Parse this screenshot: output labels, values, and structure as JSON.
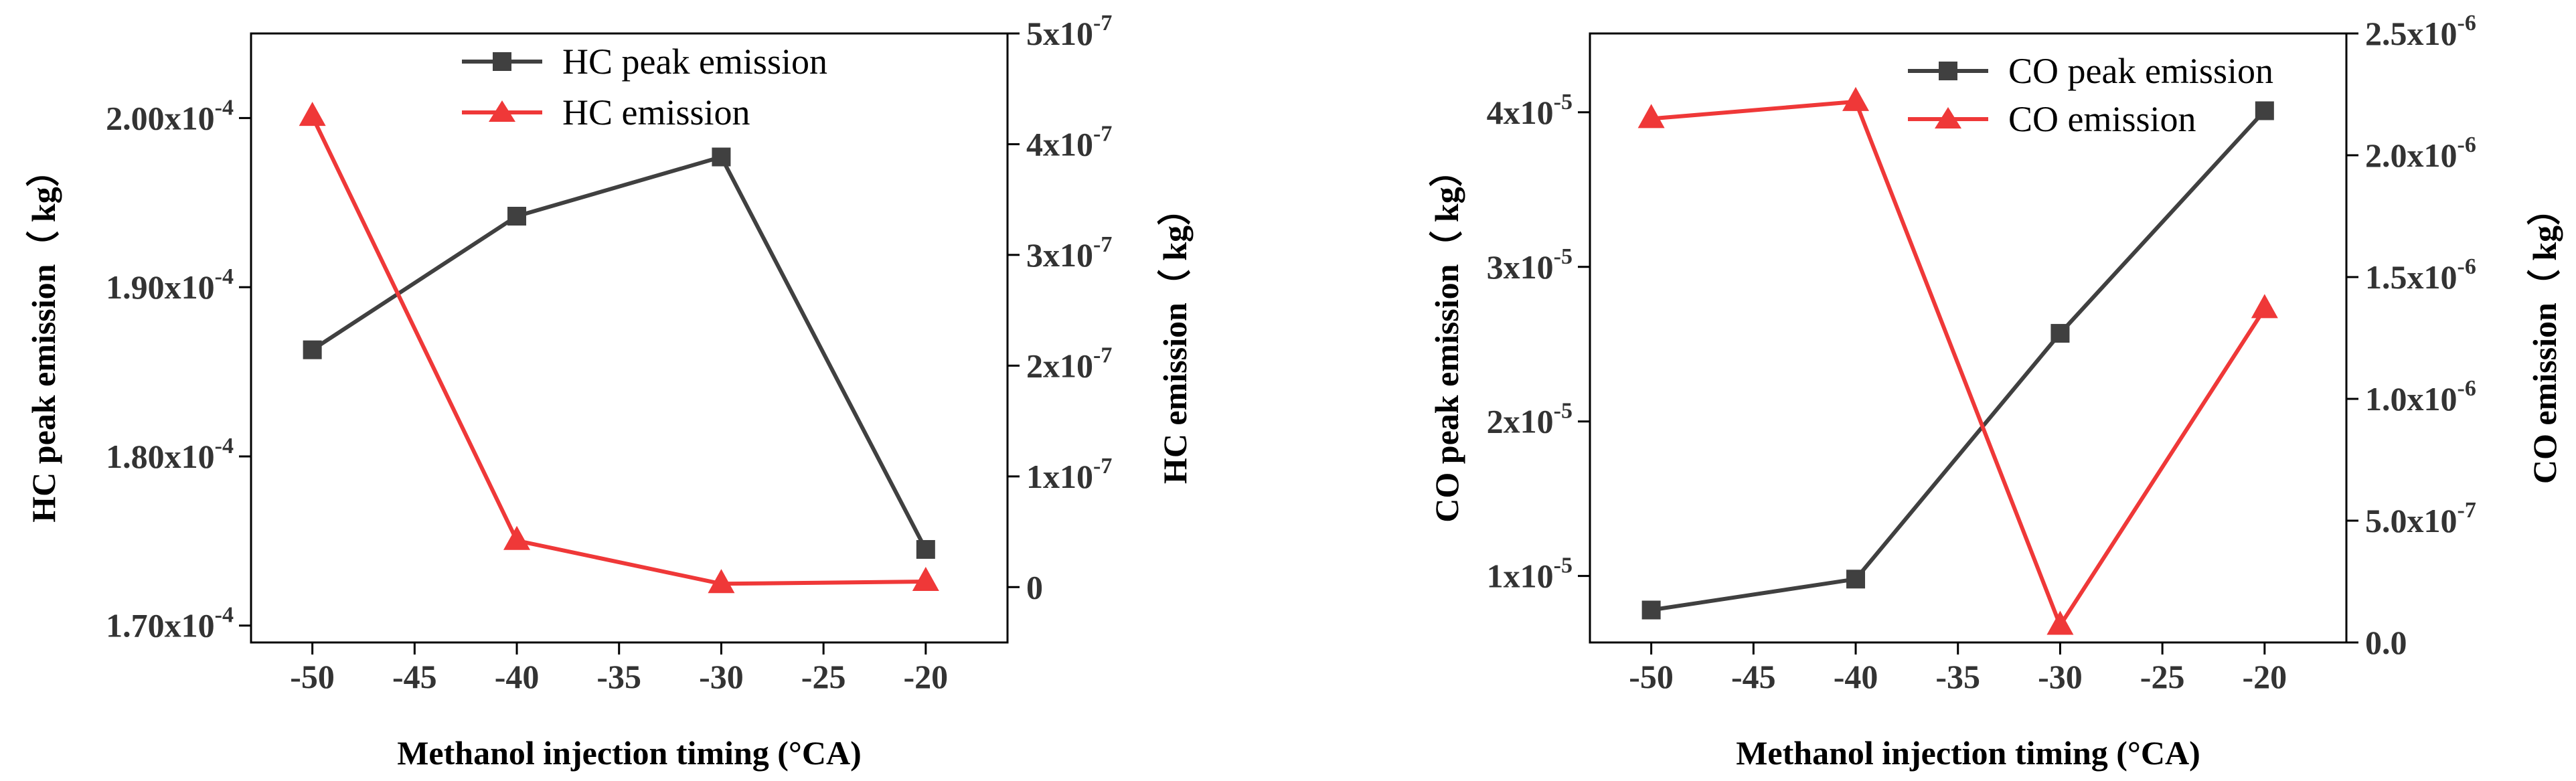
{
  "charts": [
    {
      "id": "hc",
      "xlabel": "Methanol injection timing (°CA)",
      "ylabel_left": "HC peak emission（ kg）",
      "ylabel_right": "HC emission（ kg）"
    },
    {
      "id": "co",
      "xlabel": "Methanol injection timing (°CA)",
      "ylabel_left": "CO peak emission（ kg）",
      "ylabel_right": "CO emission（ kg）"
    }
  ],
  "chart_data": [
    {
      "type": "line",
      "x": [
        -50,
        -40,
        -30,
        -20
      ],
      "xlim": [
        -53,
        -16
      ],
      "xticks": [
        -50,
        -45,
        -40,
        -35,
        -30,
        -25,
        -20
      ],
      "xlabel": "Methanol injection timing (°CA)",
      "ylabel_left": "HC peak emission（ kg）",
      "ylabel_right": "HC emission（ kg）",
      "ylim_left": [
        0.000169,
        0.000205
      ],
      "yticks_left": [
        {
          "value": 0.00017,
          "mantissa": "1.70x10",
          "exp": "-4"
        },
        {
          "value": 0.00018,
          "mantissa": "1.80x10",
          "exp": "-4"
        },
        {
          "value": 0.00019,
          "mantissa": "1.90x10",
          "exp": "-4"
        },
        {
          "value": 0.0002,
          "mantissa": "2.00x10",
          "exp": "-4"
        }
      ],
      "ylim_right": [
        -5e-08,
        5e-07
      ],
      "yticks_right": [
        {
          "value": 0,
          "mantissa": "0",
          "exp": ""
        },
        {
          "value": 1e-07,
          "mantissa": "1x10",
          "exp": "-7"
        },
        {
          "value": 2e-07,
          "mantissa": "2x10",
          "exp": "-7"
        },
        {
          "value": 3e-07,
          "mantissa": "3x10",
          "exp": "-7"
        },
        {
          "value": 4e-07,
          "mantissa": "4x10",
          "exp": "-7"
        },
        {
          "value": 5e-07,
          "mantissa": "5x10",
          "exp": "-7"
        }
      ],
      "legend_position": "top-center",
      "series": [
        {
          "name": "HC peak emission",
          "axis": "left",
          "marker": "square",
          "color": "#404040",
          "values": [
            0.0001863,
            0.0001942,
            0.0001977,
            0.0001745
          ]
        },
        {
          "name": "HC emission",
          "axis": "right",
          "marker": "triangle",
          "color": "#ef3838",
          "values": [
            4.25e-07,
            4.2e-08,
            3e-09,
            5e-09
          ]
        }
      ]
    },
    {
      "type": "line",
      "x": [
        -50,
        -40,
        -30,
        -20
      ],
      "xlim": [
        -53,
        -16
      ],
      "xticks": [
        -50,
        -45,
        -40,
        -35,
        -30,
        -25,
        -20
      ],
      "xlabel": "Methanol injection timing (°CA)",
      "ylabel_left": "CO peak emission（ kg）",
      "ylabel_right": "CO emission（ kg）",
      "ylim_left": [
        5.7e-06,
        4.51e-05
      ],
      "yticks_left": [
        {
          "value": 1e-05,
          "mantissa": "1x10",
          "exp": "-5"
        },
        {
          "value": 2e-05,
          "mantissa": "2x10",
          "exp": "-5"
        },
        {
          "value": 3e-05,
          "mantissa": "3x10",
          "exp": "-5"
        },
        {
          "value": 4e-05,
          "mantissa": "4x10",
          "exp": "-5"
        }
      ],
      "ylim_right": [
        0,
        2.5e-06
      ],
      "yticks_right": [
        {
          "value": 0,
          "mantissa": "0.0",
          "exp": ""
        },
        {
          "value": 5e-07,
          "mantissa": "5.0x10",
          "exp": "-7"
        },
        {
          "value": 1e-06,
          "mantissa": "1.0x10",
          "exp": "-6"
        },
        {
          "value": 1.5e-06,
          "mantissa": "1.5x10",
          "exp": "-6"
        },
        {
          "value": 2e-06,
          "mantissa": "2.0x10",
          "exp": "-6"
        },
        {
          "value": 2.5e-06,
          "mantissa": "2.5x10",
          "exp": "-6"
        }
      ],
      "legend_position": "top-right",
      "series": [
        {
          "name": "CO peak emission",
          "axis": "left",
          "marker": "square",
          "color": "#404040",
          "values": [
            7.8e-06,
            9.8e-06,
            2.57e-05,
            4.01e-05
          ]
        },
        {
          "name": "CO emission",
          "axis": "right",
          "marker": "triangle",
          "color": "#ef3838",
          "values": [
            2.15e-06,
            2.22e-06,
            7e-08,
            1.37e-06
          ]
        }
      ]
    }
  ]
}
